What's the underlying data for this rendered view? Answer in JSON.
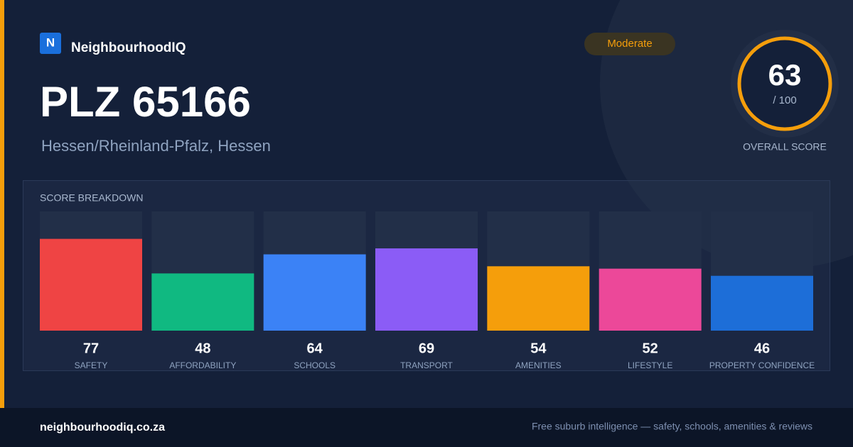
{
  "brand": {
    "logo": "N",
    "name": "NeighbourhoodIQ"
  },
  "badge": "Moderate",
  "title": "PLZ 65166",
  "subtitle": "Hessen/Rheinland-Pfalz, Hessen",
  "score": {
    "value": 63,
    "out_of": "/ 100",
    "label": "OVERALL SCORE"
  },
  "breakdown": {
    "title": "SCORE BREAKDOWN",
    "ylim": [
      0,
      100
    ],
    "items": [
      {
        "name": "SAFETY",
        "value": 77,
        "color": "#ef4444"
      },
      {
        "name": "AFFORDABILITY",
        "value": 48,
        "color": "#10b981"
      },
      {
        "name": "SCHOOLS",
        "value": 64,
        "color": "#3b82f6"
      },
      {
        "name": "TRANSPORT",
        "value": 69,
        "color": "#8b5cf6"
      },
      {
        "name": "AMENITIES",
        "value": 54,
        "color": "#f59e0b"
      },
      {
        "name": "LIFESTYLE",
        "value": 52,
        "color": "#ec4899"
      },
      {
        "name": "PROPERTY CONFIDENCE",
        "value": 46,
        "color": "#1d6ed8"
      }
    ]
  },
  "footer": {
    "url": "neighbourhoodiq.co.za",
    "tagline": "Free suburb intelligence — safety, schools, amenities & reviews"
  }
}
